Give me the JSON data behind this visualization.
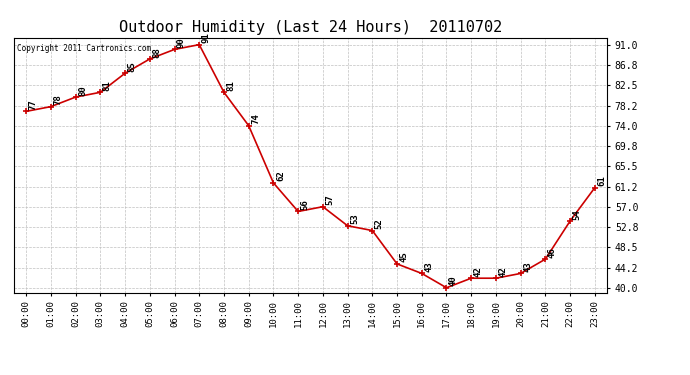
{
  "title": "Outdoor Humidity (Last 24 Hours)  20110702",
  "copyright_text": "Copyright 2011 Cartronics.com",
  "hour_labels": [
    "00:00",
    "01:00",
    "02:00",
    "03:00",
    "04:00",
    "05:00",
    "06:00",
    "07:00",
    "08:00",
    "09:00",
    "10:00",
    "11:00",
    "12:00",
    "13:00",
    "14:00",
    "15:00",
    "16:00",
    "17:00",
    "18:00",
    "19:00",
    "20:00",
    "21:00",
    "22:00",
    "23:00"
  ],
  "values": [
    77,
    78,
    80,
    81,
    85,
    88,
    90,
    91,
    81,
    74,
    62,
    56,
    57,
    53,
    52,
    45,
    43,
    40,
    42,
    42,
    43,
    46,
    54,
    61
  ],
  "ylim_min": 39.0,
  "ylim_max": 92.5,
  "yticks": [
    40.0,
    44.2,
    48.5,
    52.8,
    57.0,
    61.2,
    65.5,
    69.8,
    74.0,
    78.2,
    82.5,
    86.8,
    91.0
  ],
  "line_color": "#cc0000",
  "bg_color": "#ffffff",
  "grid_color": "#c0c0c0",
  "title_fontsize": 11,
  "annot_fontsize": 6.5,
  "tick_fontsize": 6.5,
  "ytick_fontsize": 7.0,
  "copyright_fontsize": 5.5
}
